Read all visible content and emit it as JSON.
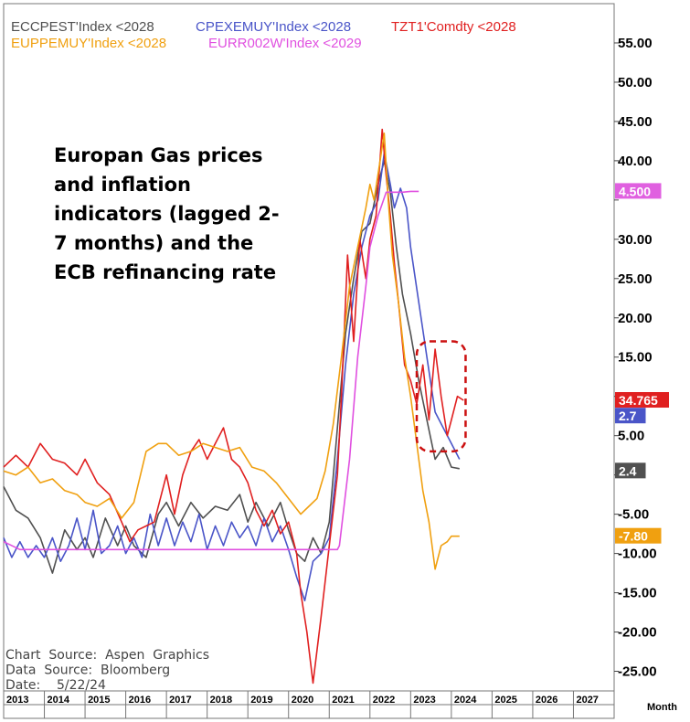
{
  "chart_data": {
    "type": "line",
    "title": "",
    "annotation_lines": [
      "Europan Gas prices",
      "and inflation",
      "indicators (lagged 2-",
      "7 months) and the",
      "ECB refinancing rate"
    ],
    "source_lines": [
      "Chart  Source:  Aspen  Graphics",
      "Data  Source:  Bloomberg",
      "Date:    5/22/24"
    ],
    "x_unit_label": "Month",
    "xlim": [
      2013.0,
      2028.0
    ],
    "ylim": [
      -27.5,
      60.0
    ],
    "y_ticks": [
      55,
      50,
      45,
      40,
      35,
      30,
      25,
      20,
      15,
      10,
      5,
      0,
      -5,
      -10,
      -15,
      -20,
      -25
    ],
    "y_tick_labels": [
      "55.00",
      "50.00",
      "45.00",
      "40.00",
      "",
      "30.00",
      "25.00",
      "20.00",
      "15.00",
      "",
      "5.00",
      "",
      "-5.00",
      "-10.00",
      "-15.00",
      "-20.00",
      "-25.00"
    ],
    "x_ticks": [
      "2013",
      "2014",
      "2015",
      "2016",
      "2017",
      "2018",
      "2019",
      "2020",
      "2021",
      "2022",
      "2023",
      "2024",
      "2025",
      "2026",
      "2027"
    ],
    "legend": [
      {
        "text": "ECCPEST'Index  <2028",
        "color": "#505050"
      },
      {
        "text": "CPEXEMUY'Index  <2028",
        "color": "#4a55c8"
      },
      {
        "text": "TZT1'Comdty  <2028",
        "color": "#e02020"
      },
      {
        "text": "EUPPEMUY'Index  <2028",
        "color": "#f0a010"
      },
      {
        "text": "EURR002W'Index  <2029",
        "color": "#e050e0"
      }
    ],
    "last_value_badges": [
      {
        "label": "4.500",
        "value": 36.1,
        "bg": "#e060e0",
        "fg": "#ffffff"
      },
      {
        "label": "34.765",
        "value": 9.5,
        "bg": "#e02020",
        "fg": "#ffffff"
      },
      {
        "label": "2.7",
        "value": 7.5,
        "bg": "#4a55c8",
        "fg": "#ffffff"
      },
      {
        "label": "2.4",
        "value": 0.5,
        "bg": "#505050",
        "fg": "#ffffff"
      },
      {
        "label": "-7.80",
        "value": -7.8,
        "bg": "#f0a010",
        "fg": "#ffffff"
      }
    ],
    "highlight_box": {
      "x0": 2023.15,
      "x1": 2024.35,
      "y0": 3.0,
      "y1": 17.0,
      "color": "#cc1010"
    },
    "series": [
      {
        "name": "ECCPEST'Index  <2028",
        "color": "#505050",
        "x": [
          2013.0,
          2013.3,
          2013.6,
          2013.9,
          2014.2,
          2014.5,
          2014.8,
          2015.0,
          2015.2,
          2015.5,
          2015.8,
          2016.0,
          2016.2,
          2016.5,
          2016.8,
          2017.0,
          2017.3,
          2017.6,
          2017.9,
          2018.2,
          2018.5,
          2018.8,
          2019.0,
          2019.2,
          2019.5,
          2019.8,
          2020.0,
          2020.2,
          2020.4,
          2020.6,
          2020.8,
          2021.0,
          2021.2,
          2021.4,
          2021.6,
          2021.8,
          2022.0,
          2022.2,
          2022.35,
          2022.5,
          2022.65,
          2022.8,
          2023.0,
          2023.2,
          2023.4,
          2023.6,
          2023.8,
          2024.0,
          2024.2
        ],
        "y": [
          -1.5,
          -4.5,
          -5.5,
          -8.0,
          -12.5,
          -7.0,
          -9.5,
          -8.0,
          -10.5,
          -5.5,
          -9.0,
          -6.5,
          -9.0,
          -10.5,
          -5.0,
          -3.5,
          -6.5,
          -3.5,
          -5.5,
          -4.0,
          -4.5,
          -2.5,
          -6.0,
          -3.5,
          -6.5,
          -3.5,
          -7.0,
          -10.0,
          -11.0,
          -8.0,
          -10.0,
          -6.0,
          6.0,
          18.0,
          25.0,
          31.0,
          32.0,
          37.0,
          40.0,
          36.0,
          29.0,
          23.0,
          18.0,
          12.0,
          7.0,
          2.0,
          3.5,
          1.0,
          0.8
        ]
      },
      {
        "name": "CPEXEMUY'Index  <2028",
        "color": "#4a55c8",
        "x": [
          2013.0,
          2013.2,
          2013.4,
          2013.6,
          2013.8,
          2014.0,
          2014.2,
          2014.4,
          2014.6,
          2014.8,
          2015.0,
          2015.2,
          2015.4,
          2015.6,
          2015.8,
          2016.0,
          2016.2,
          2016.4,
          2016.6,
          2016.8,
          2017.0,
          2017.2,
          2017.4,
          2017.6,
          2017.8,
          2018.0,
          2018.2,
          2018.4,
          2018.6,
          2018.8,
          2019.0,
          2019.2,
          2019.4,
          2019.6,
          2019.8,
          2020.0,
          2020.2,
          2020.4,
          2020.6,
          2020.8,
          2021.0,
          2021.2,
          2021.4,
          2021.6,
          2021.8,
          2022.0,
          2022.2,
          2022.35,
          2022.5,
          2022.6,
          2022.75,
          2022.9,
          2023.0,
          2023.2,
          2023.4,
          2023.6,
          2023.8,
          2024.0,
          2024.2
        ],
        "y": [
          -8.0,
          -10.5,
          -8.5,
          -10.5,
          -9.0,
          -10.5,
          -8.0,
          -11.0,
          -9.0,
          -5.5,
          -9.5,
          -4.5,
          -10.0,
          -9.0,
          -6.5,
          -10.0,
          -8.0,
          -10.5,
          -5.0,
          -9.0,
          -5.5,
          -9.0,
          -6.0,
          -8.5,
          -5.0,
          -9.5,
          -6.5,
          -9.0,
          -6.0,
          -8.0,
          -6.5,
          -9.0,
          -5.5,
          -8.5,
          -6.5,
          -9.5,
          -13.0,
          -16.0,
          -11.0,
          -10.0,
          -8.0,
          2.0,
          14.0,
          23.0,
          29.0,
          33.0,
          35.0,
          41.0,
          37.0,
          34.0,
          36.5,
          34.0,
          29.0,
          22.0,
          15.0,
          8.0,
          6.0,
          4.0,
          2.0
        ]
      },
      {
        "name": "TZT1'Comdty  <2028",
        "color": "#e02020",
        "x": [
          2013.0,
          2013.3,
          2013.6,
          2013.9,
          2014.2,
          2014.5,
          2014.8,
          2015.0,
          2015.3,
          2015.6,
          2015.9,
          2016.1,
          2016.3,
          2016.5,
          2016.7,
          2017.0,
          2017.2,
          2017.4,
          2017.6,
          2017.8,
          2018.0,
          2018.2,
          2018.4,
          2018.6,
          2018.8,
          2019.0,
          2019.2,
          2019.4,
          2019.6,
          2019.8,
          2020.0,
          2020.2,
          2020.3,
          2020.45,
          2020.6,
          2020.8,
          2021.0,
          2021.2,
          2021.3,
          2021.45,
          2021.6,
          2021.75,
          2021.9,
          2022.0,
          2022.15,
          2022.3,
          2022.4,
          2022.5,
          2022.6,
          2022.7,
          2022.85,
          2023.0,
          2023.15,
          2023.3,
          2023.45,
          2023.6,
          2023.75,
          2023.9,
          2024.0,
          2024.15,
          2024.3
        ],
        "y": [
          1.0,
          2.5,
          1.0,
          4.0,
          2.0,
          1.5,
          0.0,
          2.0,
          -1.0,
          -2.5,
          -6.0,
          -8.5,
          -7.0,
          -6.5,
          -6.0,
          0.0,
          -5.0,
          0.0,
          3.0,
          4.5,
          2.0,
          4.0,
          6.0,
          2.0,
          1.0,
          -1.0,
          -4.5,
          -6.5,
          -4.5,
          -7.5,
          -6.0,
          -10.0,
          -15.0,
          -20.0,
          -26.5,
          -18.0,
          -9.0,
          0.0,
          10.0,
          28.0,
          17.0,
          30.0,
          25.0,
          30.0,
          33.0,
          44.0,
          38.0,
          33.0,
          27.0,
          22.0,
          14.0,
          12.0,
          9.0,
          14.0,
          7.0,
          16.0,
          10.0,
          5.0,
          7.0,
          10.0,
          9.5
        ]
      },
      {
        "name": "EUPPEMUY'Index  <2028",
        "color": "#f0a010",
        "x": [
          2013.0,
          2013.3,
          2013.6,
          2013.9,
          2014.2,
          2014.5,
          2014.8,
          2015.0,
          2015.3,
          2015.6,
          2015.9,
          2016.2,
          2016.5,
          2016.8,
          2017.0,
          2017.3,
          2017.6,
          2017.9,
          2018.2,
          2018.5,
          2018.8,
          2019.1,
          2019.4,
          2019.7,
          2020.0,
          2020.3,
          2020.5,
          2020.7,
          2020.9,
          2021.1,
          2021.3,
          2021.5,
          2021.7,
          2021.9,
          2022.0,
          2022.1,
          2022.25,
          2022.35,
          2022.45,
          2022.55,
          2022.7,
          2022.85,
          2023.0,
          2023.15,
          2023.3,
          2023.45,
          2023.6,
          2023.75,
          2023.9,
          2024.0,
          2024.2
        ],
        "y": [
          0.5,
          0.0,
          1.0,
          -1.0,
          -0.5,
          -2.0,
          -2.5,
          -3.5,
          -4.0,
          -3.0,
          -5.5,
          -3.5,
          3.0,
          4.0,
          4.0,
          2.5,
          3.0,
          4.0,
          3.5,
          3.0,
          3.5,
          1.0,
          0.5,
          -1.0,
          -3.0,
          -5.0,
          -4.0,
          -3.0,
          0.5,
          6.5,
          15.0,
          24.0,
          29.0,
          34.0,
          37.0,
          35.0,
          40.0,
          43.5,
          35.0,
          28.0,
          22.0,
          15.0,
          10.0,
          4.0,
          -2.0,
          -6.0,
          -12.0,
          -9.0,
          -8.5,
          -7.8,
          -7.8
        ]
      },
      {
        "name": "EURR002W'Index  <2029",
        "color": "#e050e0",
        "x": [
          2013.0,
          2013.4,
          2013.8,
          2014.4,
          2015.0,
          2016.0,
          2017.0,
          2018.0,
          2019.0,
          2020.0,
          2021.0,
          2021.2,
          2021.25,
          2021.5,
          2021.7,
          2021.9,
          2022.0,
          2022.2,
          2022.4,
          2022.6,
          2022.8,
          2023.0,
          2023.2
        ],
        "y": [
          -8.5,
          -9.5,
          -9.5,
          -9.5,
          -9.5,
          -9.5,
          -9.5,
          -9.5,
          -9.5,
          -9.5,
          -9.5,
          -9.5,
          -9.0,
          2.0,
          15.0,
          24.0,
          29.0,
          33.0,
          36.0,
          36.0,
          36.0,
          36.1,
          36.1
        ]
      }
    ]
  }
}
